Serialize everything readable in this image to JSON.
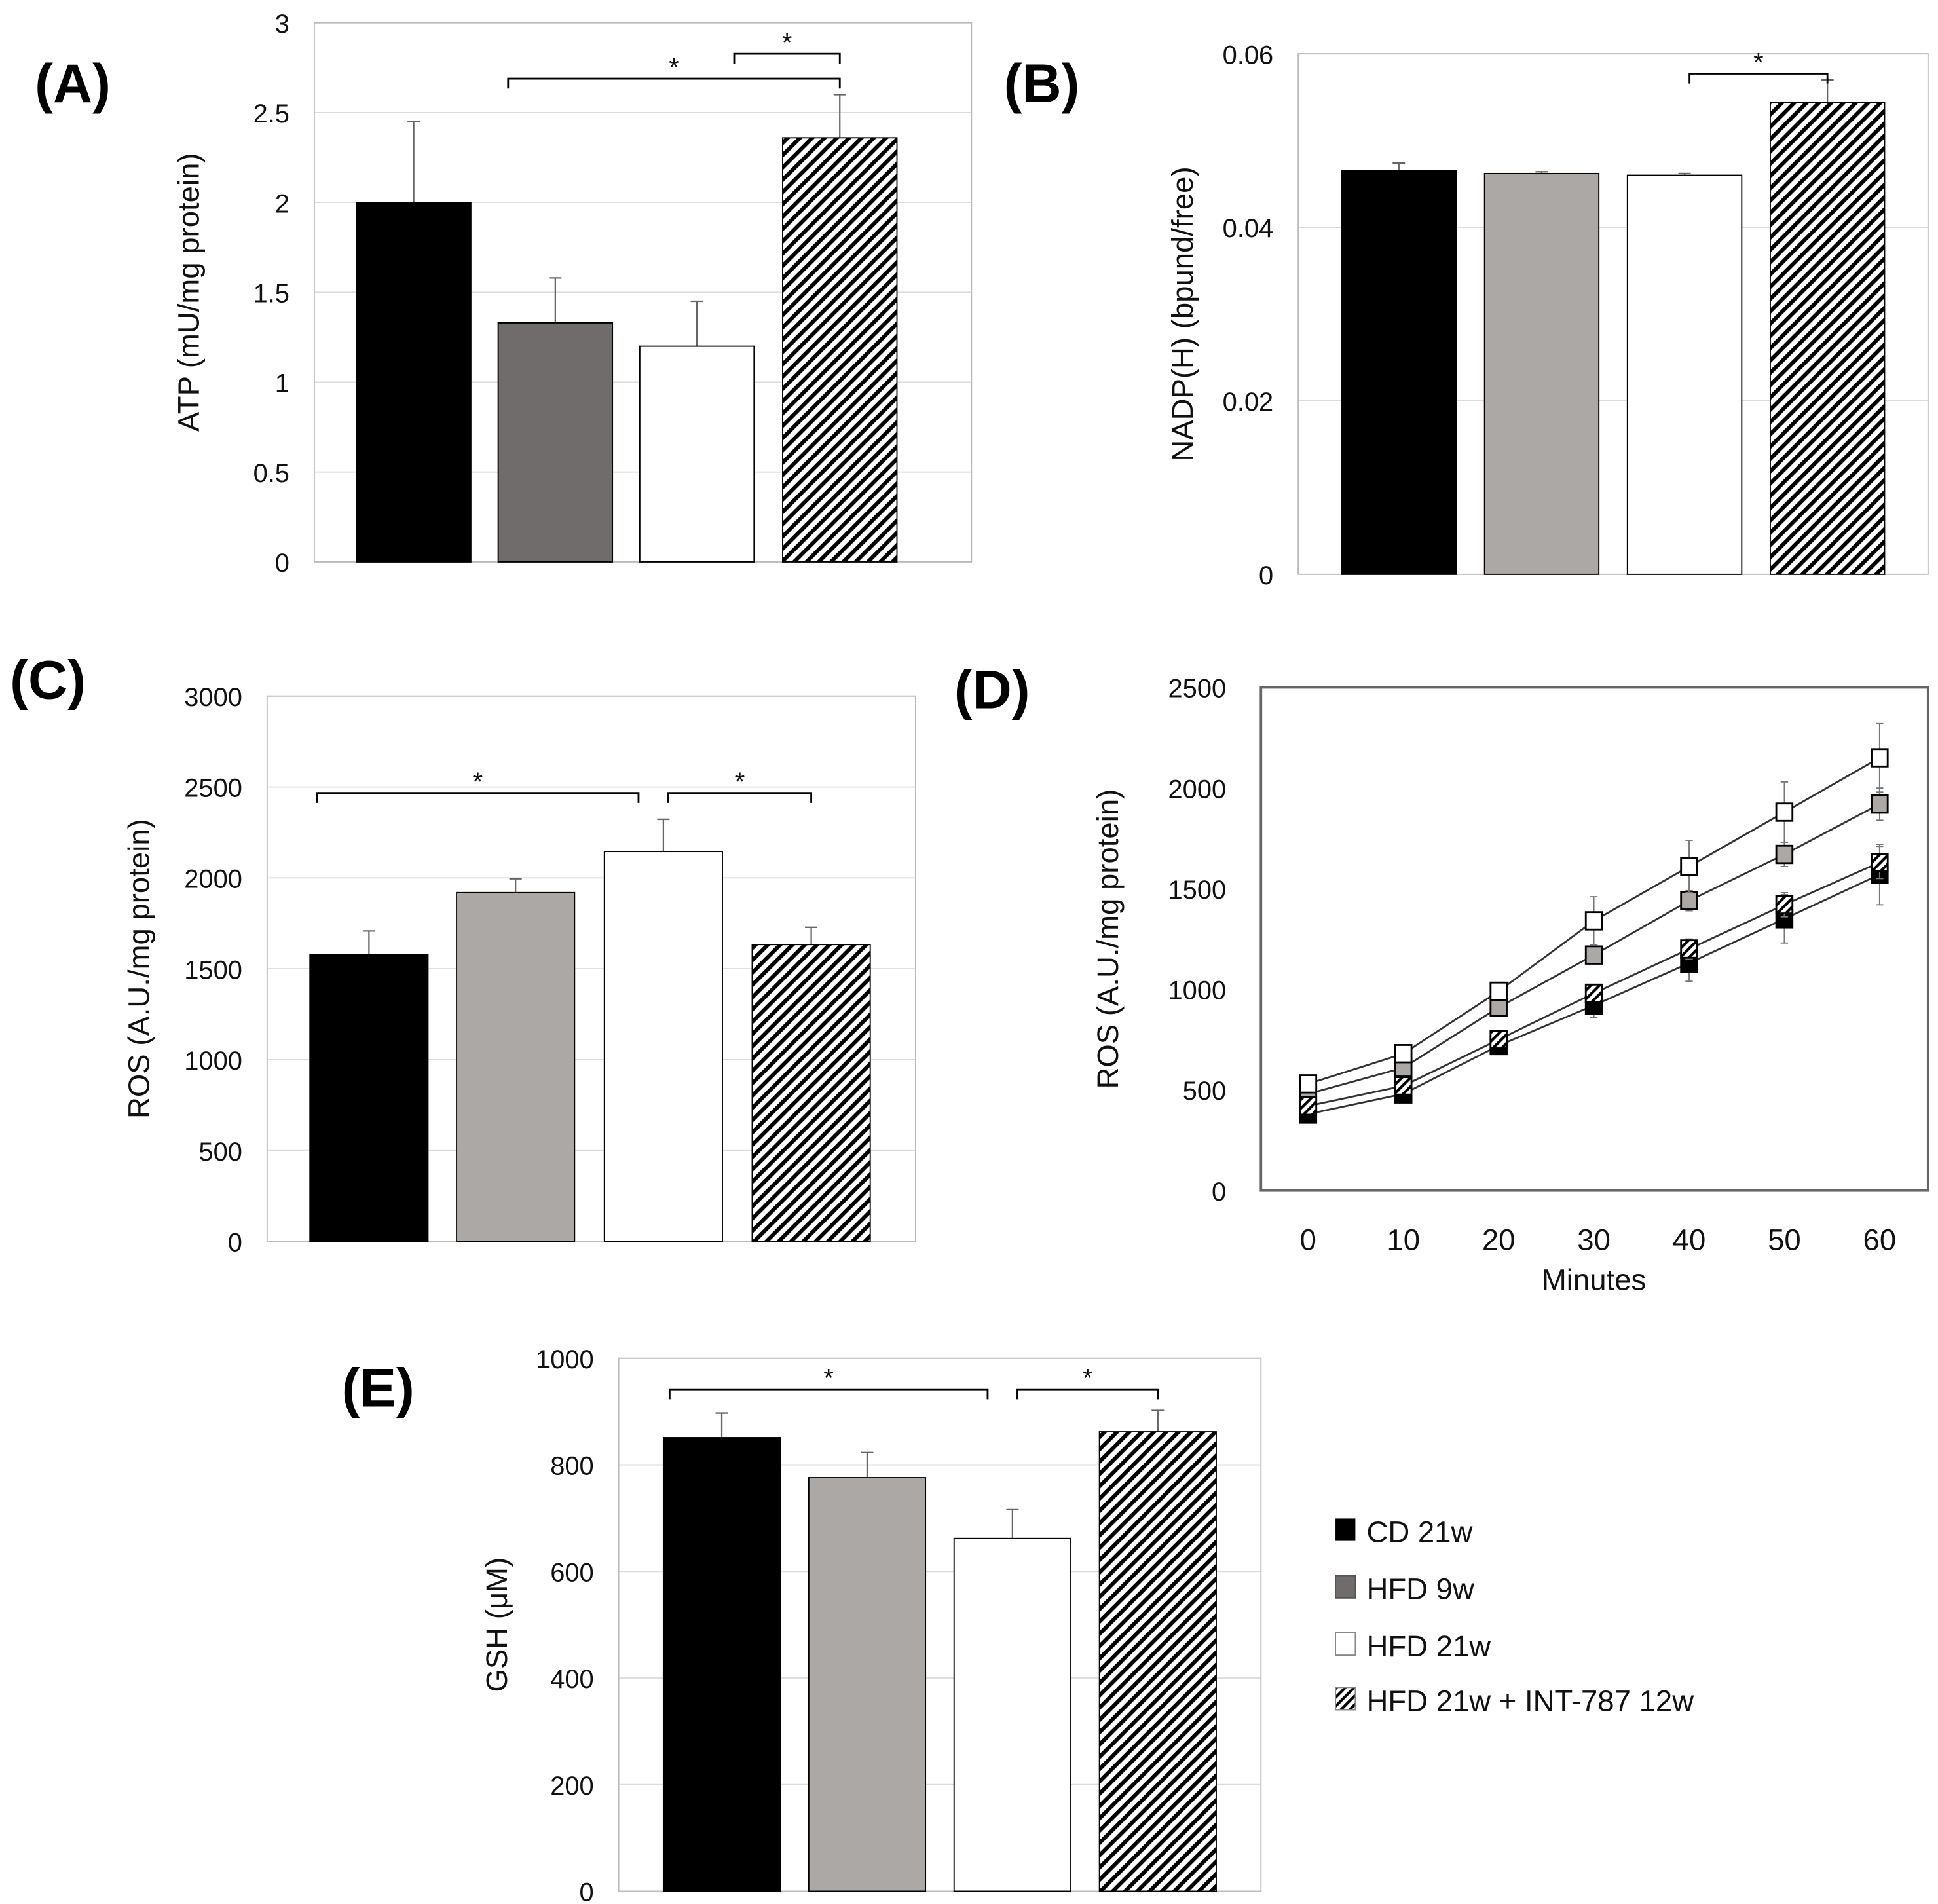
{
  "groups": [
    "CD 21w",
    "HFD 9w",
    "HFD 21w",
    "HFD 21w + INT-787 12w"
  ],
  "colors": {
    "cd": "#000000",
    "hfd9_dark": "#706c6b",
    "hfd9_light": "#aba8a6",
    "hfd21": "#ffffff",
    "int": "hatch"
  },
  "chart_data": [
    {
      "id": "A",
      "type": "bar",
      "title": "(A)",
      "ylabel": "ATP (mU/mg protein)",
      "xlabel": "",
      "ylim": [
        0,
        3
      ],
      "yticks": [
        "0",
        "0.5",
        "1",
        "1.5",
        "2",
        "2.5",
        "3"
      ],
      "ytick_values": [
        0,
        0.5,
        1,
        1.5,
        2,
        2.5,
        3
      ],
      "categories": [
        "CD 21w",
        "HFD 9w",
        "HFD 21w",
        "HFD 21w + INT-787 12w"
      ],
      "values": [
        2.0,
        1.33,
        1.2,
        2.36
      ],
      "errors": [
        0.45,
        0.25,
        0.25,
        0.24
      ],
      "significance": [
        {
          "from": 2,
          "to": 3,
          "label": "*"
        },
        {
          "from": 1,
          "to": 3,
          "label": "*"
        }
      ],
      "grid": true
    },
    {
      "id": "B",
      "type": "bar",
      "title": "(B)",
      "ylabel": "NADP(H) (bpund/free)",
      "xlabel": "",
      "ylim": [
        0,
        0.06
      ],
      "yticks": [
        "0",
        "0.02",
        "0.04",
        "0.06"
      ],
      "ytick_values": [
        0,
        0.02,
        0.04,
        0.06
      ],
      "categories": [
        "CD 21w",
        "HFD 9w",
        "HFD 21w",
        "HFD 21w + INT-787 12w"
      ],
      "values": [
        0.0465,
        0.0462,
        0.046,
        0.0544
      ],
      "errors": [
        0.0009,
        0.0002,
        0.0002,
        0.0026
      ],
      "significance": [
        {
          "from": 2,
          "to": 3,
          "label": "*"
        }
      ],
      "grid": true
    },
    {
      "id": "C",
      "type": "bar",
      "title": "(C)",
      "ylabel": "ROS (A.U./mg protein)",
      "xlabel": "",
      "ylim": [
        0,
        3000
      ],
      "yticks": [
        "0",
        "500",
        "1000",
        "1500",
        "2000",
        "2500",
        "3000"
      ],
      "ytick_values": [
        0,
        500,
        1000,
        1500,
        2000,
        2500,
        3000
      ],
      "categories": [
        "CD 21w",
        "HFD 9w",
        "HFD 21w",
        "HFD 21w + INT-787 12w"
      ],
      "values": [
        1578,
        1919,
        2145,
        1633
      ],
      "errors": [
        130,
        76,
        177,
        95
      ],
      "significance": [
        {
          "from": 0,
          "to": 2,
          "label": "*"
        },
        {
          "from": 2,
          "to": 3,
          "label": "*"
        }
      ],
      "grid": true
    },
    {
      "id": "D",
      "type": "line",
      "title": "(D)",
      "ylabel": "ROS (A.U./mg protein)",
      "xlabel": "Minutes",
      "ylim": [
        0,
        2500
      ],
      "yticks": [
        "0",
        "500",
        "1000",
        "1500",
        "2000",
        "2500"
      ],
      "ytick_values": [
        0,
        500,
        1000,
        1500,
        2000,
        2500
      ],
      "x": [
        0,
        10,
        20,
        30,
        40,
        50,
        60
      ],
      "xticks": [
        "0",
        "10",
        "20",
        "30",
        "40",
        "50",
        "60"
      ],
      "series": [
        {
          "name": "CD 21w",
          "values": [
            380,
            480,
            720,
            920,
            1130,
            1350,
            1570
          ],
          "errors": [
            20,
            20,
            30,
            60,
            90,
            120,
            150
          ]
        },
        {
          "name": "HFD 9w",
          "values": [
            480,
            610,
            910,
            1170,
            1440,
            1670,
            1920
          ],
          "errors": [
            20,
            20,
            30,
            40,
            50,
            60,
            80
          ]
        },
        {
          "name": "HFD 21w",
          "values": [
            530,
            680,
            990,
            1340,
            1610,
            1880,
            2150
          ],
          "errors": [
            20,
            20,
            30,
            120,
            130,
            150,
            170
          ]
        },
        {
          "name": "HFD 21w + INT-787 12w",
          "values": [
            420,
            520,
            750,
            980,
            1200,
            1420,
            1630
          ],
          "errors": [
            20,
            20,
            30,
            40,
            50,
            60,
            80
          ]
        }
      ],
      "grid": false
    },
    {
      "id": "E",
      "type": "bar",
      "title": "(E)",
      "ylabel": "GSH (μM)",
      "xlabel": "",
      "ylim": [
        0,
        1000
      ],
      "yticks": [
        "0",
        "200",
        "400",
        "600",
        "800",
        "1000"
      ],
      "ytick_values": [
        0,
        200,
        400,
        600,
        800,
        1000
      ],
      "categories": [
        "CD 21w",
        "HFD 9w",
        "HFD 21w",
        "HFD 21w + INT-787 12w"
      ],
      "values": [
        851,
        776,
        662,
        862
      ],
      "errors": [
        46,
        47,
        54,
        40
      ],
      "significance": [
        {
          "from": 0,
          "to": 2,
          "label": "*"
        },
        {
          "from": 2,
          "to": 3,
          "label": "*"
        }
      ],
      "grid": true
    }
  ],
  "legend": {
    "placement": "bottom-right",
    "items": [
      "CD 21w",
      "HFD 9w",
      "HFD 21w",
      "HFD 21w + INT-787 12w"
    ]
  }
}
